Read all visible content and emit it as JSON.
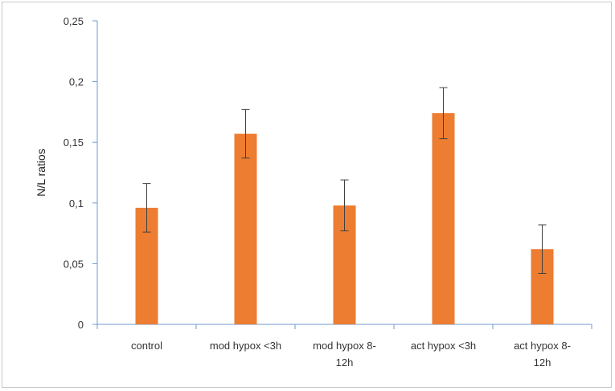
{
  "chart_data": {
    "type": "bar",
    "title": "",
    "xlabel": "",
    "ylabel": "N/L ratios",
    "categories": [
      [
        "control"
      ],
      [
        "mod hypox <3h"
      ],
      [
        "mod hypox  8-",
        "12h"
      ],
      [
        "act hypox <3h"
      ],
      [
        "act hypox  8-",
        "12h"
      ]
    ],
    "series": [
      {
        "values": [
          0.096,
          0.157,
          0.098,
          0.174,
          0.062
        ],
        "error": [
          0.02,
          0.02,
          0.021,
          0.021,
          0.02
        ]
      }
    ],
    "ylim": [
      0,
      0.25
    ],
    "yticks": [
      0,
      0.05,
      0.1,
      0.15,
      0.2,
      0.25
    ],
    "ytick_labels": [
      "0",
      "0,05",
      "0,1",
      "0,15",
      "0,2",
      "0,25"
    ],
    "grid": false,
    "legend": "none",
    "colors": {
      "bar": "#ed7d31",
      "axis": "#6f9bd1",
      "error_bar": "#404040"
    }
  }
}
